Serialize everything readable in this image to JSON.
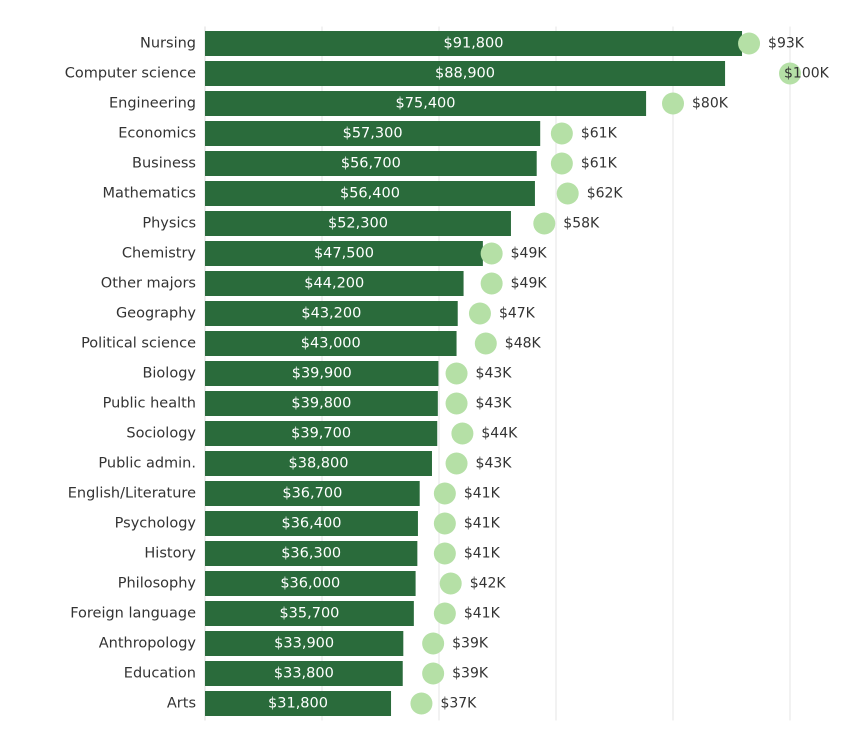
{
  "chart_data": {
    "type": "bar",
    "orientation": "horizontal",
    "categories": [
      "Nursing",
      "Computer science",
      "Engineering",
      "Economics",
      "Business",
      "Mathematics",
      "Physics",
      "Chemistry",
      "Other majors",
      "Geography",
      "Political science",
      "Biology",
      "Public health",
      "Sociology",
      "Public admin.",
      "English/Literature",
      "Psychology",
      "History",
      "Philosophy",
      "Foreign language",
      "Anthropology",
      "Education",
      "Arts"
    ],
    "series": [
      {
        "values": [
          91800,
          88900,
          75400,
          57300,
          56700,
          56400,
          52300,
          47500,
          44200,
          43200,
          43000,
          39900,
          39800,
          39700,
          38800,
          36700,
          36400,
          36300,
          36000,
          35700,
          33900,
          33800,
          31800
        ],
        "labels": [
          "$91,800",
          "$88,900",
          "$75,400",
          "$57,300",
          "$56,700",
          "$56,400",
          "$52,300",
          "$47,500",
          "$44,200",
          "$43,200",
          "$43,000",
          "$39,900",
          "$39,800",
          "$39,700",
          "$38,800",
          "$36,700",
          "$36,400",
          "$36,300",
          "$36,000",
          "$35,700",
          "$33,900",
          "$33,800",
          "$31,800"
        ],
        "color": "#2a6b3b",
        "mark": "bar"
      },
      {
        "values": [
          93000,
          100000,
          80000,
          61000,
          61000,
          62000,
          58000,
          49000,
          49000,
          47000,
          48000,
          43000,
          43000,
          44000,
          43000,
          41000,
          41000,
          41000,
          42000,
          41000,
          39000,
          39000,
          37000
        ],
        "labels": [
          "$93K",
          "$100K",
          "$80K",
          "$61K",
          "$61K",
          "$62K",
          "$58K",
          "$49K",
          "$49K",
          "$47K",
          "$48K",
          "$43K",
          "$43K",
          "$44K",
          "$43K",
          "$41K",
          "$41K",
          "$41K",
          "$42K",
          "$41K",
          "$39K",
          "$39K",
          "$37K"
        ],
        "color": "#b5e0a6",
        "mark": "dot"
      }
    ],
    "xlim": [
      0,
      100000
    ],
    "grid": true,
    "colors": {
      "gridline": "#e6e6e6",
      "category_text": "#333333",
      "bar_label_text": "#ffffff",
      "dot_label_text": "#333333"
    }
  }
}
